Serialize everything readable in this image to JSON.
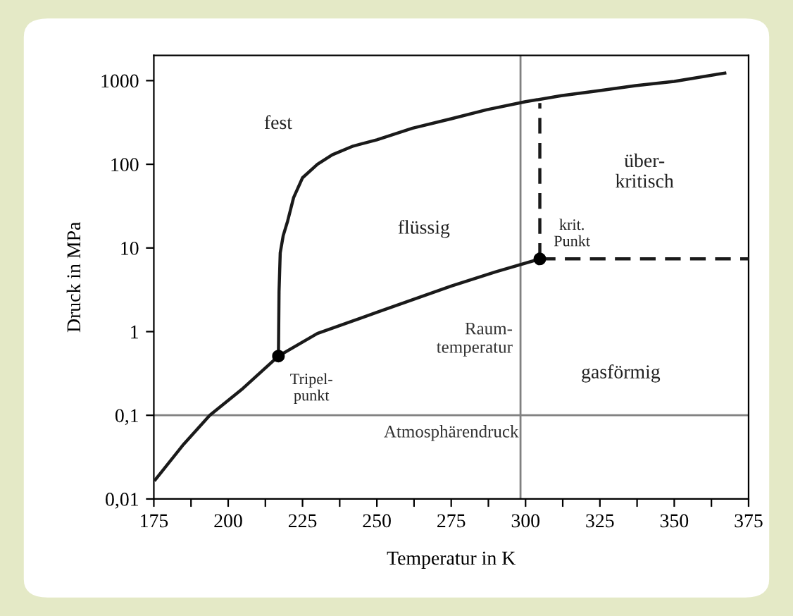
{
  "chart_data": {
    "type": "line",
    "xlabel": "Temperatur in K",
    "ylabel": "Druck in MPa",
    "log": "y",
    "grid": false,
    "legend": false,
    "xlim": [
      175,
      375
    ],
    "ylim": [
      0.01,
      2000
    ],
    "xticks": [
      175,
      {
        "value": 187.5,
        "label": null
      },
      200,
      {
        "value": 212.5,
        "label": null
      },
      225,
      {
        "value": 237.5,
        "label": null
      },
      250,
      {
        "value": 262.5,
        "label": null
      },
      275,
      {
        "value": 287.5,
        "label": null
      },
      300,
      {
        "value": 312.5,
        "label": null
      },
      325,
      {
        "value": 337.5,
        "label": null
      },
      350,
      {
        "value": 362.5,
        "label": null
      },
      375
    ],
    "yticks": [
      {
        "value": 0.01,
        "label": "0,01"
      },
      {
        "value": 0.1,
        "label": "0,1"
      },
      1,
      10,
      100,
      1000
    ],
    "series": [
      {
        "color": "#1a1a1a",
        "x": [
          175.5,
          185,
          193.8,
          205,
          216.9
        ],
        "values": [
          0.017,
          0.045,
          0.1,
          0.21,
          0.51
        ]
      },
      {
        "color": "#1a1a1a",
        "x": [
          216.9,
          230,
          250,
          275,
          290,
          304.8
        ],
        "values": [
          0.51,
          0.95,
          1.7,
          3.5,
          5.2,
          7.4
        ]
      },
      {
        "color": "#1a1a1a",
        "x": [
          216.9,
          217.1,
          217.5,
          218.5,
          220,
          222,
          225,
          230,
          235,
          242,
          250,
          262,
          275,
          287,
          300,
          312,
          325,
          337,
          350,
          367
        ],
        "values": [
          0.51,
          3,
          8.7,
          14,
          21,
          40,
          69,
          100,
          130,
          165,
          196,
          270,
          350,
          450,
          560,
          660,
          760,
          870,
          980,
          1230
        ]
      },
      {
        "color": "#1a1a1a",
        "line_style": "dashed",
        "x": [
          304.8,
          304.8
        ],
        "values": [
          7.4,
          540
        ]
      },
      {
        "color": "#1a1a1a",
        "line_style": "dashed",
        "x": [
          304.8,
          375
        ],
        "values": [
          7.4,
          7.4
        ]
      },
      {
        "type": "scatter",
        "marker": "circle",
        "color": "#000000",
        "x": [
          216.9,
          304.8
        ],
        "values": [
          0.51,
          7.4
        ]
      }
    ],
    "ref_lines": [
      {
        "axis": "y",
        "value": 0.1,
        "label": "Atmosphärendruck",
        "color": "#808080"
      },
      {
        "axis": "x",
        "value": 298.3,
        "label": "Raum-\ntemperatur",
        "color": "#808080"
      }
    ],
    "annotations": [
      "fest",
      "flüssig",
      "über-\nkritisch",
      "krit.\nPunkt",
      "gasförmig",
      "Tripel-\npunkt"
    ]
  }
}
